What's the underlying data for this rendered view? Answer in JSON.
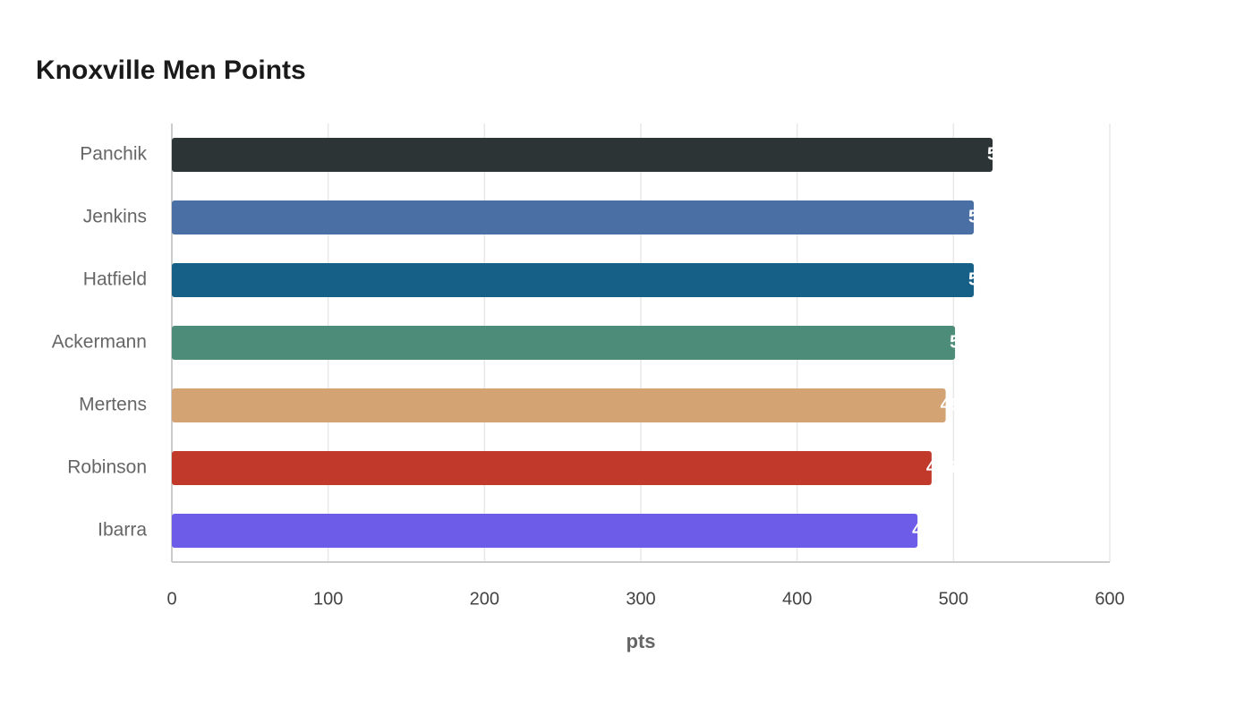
{
  "chart_data": {
    "type": "hbar",
    "title": "Knoxville Men Points",
    "x_label": "pts",
    "categories": [
      "Panchik",
      "Jenkins",
      "Hatfield",
      "Ackermann",
      "Mertens",
      "Robinson",
      "Ibarra"
    ],
    "values": [
      525,
      513,
      513,
      501,
      495,
      486,
      477
    ],
    "colors": [
      "#2d3436",
      "#4a6fa5",
      "#166088",
      "#4e8c7a",
      "#d4a373",
      "#c0392b",
      "#6c5ce7"
    ],
    "xlim": [
      0,
      600
    ],
    "xticks": [
      0,
      100,
      200,
      300,
      400,
      500,
      600
    ],
    "grid": true
  }
}
